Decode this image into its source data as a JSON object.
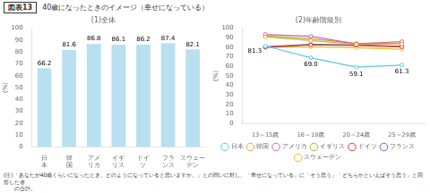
{
  "title": "40歳になったときのイメージ（幸せになっている）",
  "annotations": [
    "図表13",
    "(注)「あなたが40歳くらいになったとき、どのようになっていると思いますか。」との問いに対し、「幸せになっている」に「そう思う」「どちらかといえばそう思う」と回答した者\n　　の合計。"
  ],
  "chart_data": [
    {
      "type": "bar",
      "title": "(1)全体",
      "categories": [
        "日\n本",
        "韓\n国",
        "アメ\nリカ",
        "イギ\nリス",
        "ドイ\nツ",
        "フラ\nンス",
        "スウェー\nデン"
      ],
      "values": [
        66.2,
        81.6,
        86.8,
        86.1,
        86.2,
        87.4,
        82.1
      ],
      "color": "#b8e0f0",
      "ylabel": "(%)",
      "ylim": [
        0,
        100
      ],
      "yticks": [
        0,
        10,
        20,
        30,
        40,
        50,
        60,
        70,
        80,
        90,
        100
      ],
      "grid": false,
      "data_labels": true
    },
    {
      "type": "line",
      "title": "(2)年齢階級別",
      "categories": [
        "13～15歳",
        "16～19歳",
        "20～24歳",
        "25～29歳"
      ],
      "series": [
        {
          "name": "日本",
          "color": "#5bc8e8",
          "marker": "circle",
          "values": [
            81.3,
            69.0,
            59.1,
            61.3
          ],
          "data_labels": true,
          "value_labels": [
            "81.3",
            "69.0",
            "59.1",
            "61.3"
          ]
        },
        {
          "name": "韓国",
          "color": "#f5a030",
          "marker": "circle",
          "values": [
            91.0,
            87.0,
            83.0,
            83.5
          ]
        },
        {
          "name": "アメリカ",
          "color": "#d060b0",
          "marker": "circle",
          "values": [
            93.5,
            91.5,
            83.5,
            86.0
          ]
        },
        {
          "name": "イギリス",
          "color": "#90c030",
          "marker": "circle",
          "values": [
            92.0,
            89.0,
            84.0,
            84.5
          ]
        },
        {
          "name": "ドイツ",
          "color": "#e03030",
          "marker": "circle",
          "values": [
            80.0,
            82.5,
            82.0,
            80.5
          ]
        },
        {
          "name": "フランス",
          "color": "#4070d0",
          "marker": "circle",
          "values": [
            80.5,
            83.0,
            82.5,
            81.0
          ]
        },
        {
          "name": "スウェーデン",
          "color": "#e0c020",
          "marker": "circle",
          "values": [
            80.0,
            80.5,
            79.5,
            78.0
          ]
        }
      ],
      "ylabel": "(%)",
      "ylim": [
        0,
        100
      ],
      "yticks": [
        0,
        10,
        20,
        30,
        40,
        50,
        60,
        70,
        80,
        90,
        100
      ],
      "grid": false,
      "legend": "bottom"
    }
  ]
}
